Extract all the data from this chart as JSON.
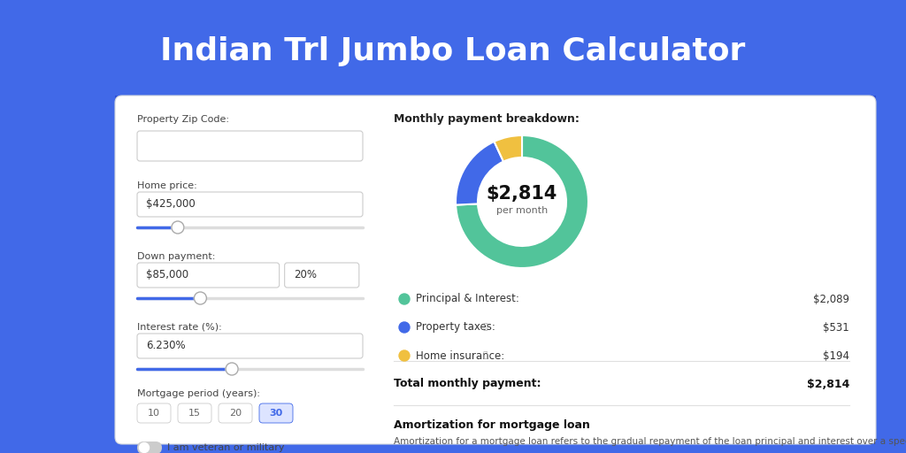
{
  "title": "Indian Trl Jumbo Loan Calculator",
  "title_bg_color": "#4169e8",
  "title_text_color": "#ffffff",
  "title_fontsize": 26,
  "panel_bg_color": "#ffffff",
  "card_border_color": "#d0d5dd",
  "left_panel": {
    "zip_label": "Property Zip Code:",
    "home_label": "Home price:",
    "home_value": "$425,000",
    "down_label": "Down payment:",
    "down_value": "$85,000",
    "down_pct": "20%",
    "rate_label": "Interest rate (%):",
    "rate_value": "6.230%",
    "period_label": "Mortgage period (years):",
    "period_options": [
      "10",
      "15",
      "20",
      "30"
    ],
    "period_selected": "30",
    "toggle_label": "I am veteran or military"
  },
  "right_panel": {
    "title": "Monthly payment breakdown:",
    "donut": {
      "total": "$2,814",
      "subtitle": "per month",
      "slices": [
        2089,
        531,
        194
      ],
      "colors": [
        "#52c49a",
        "#4169e8",
        "#f0c040"
      ]
    },
    "breakdown": [
      {
        "label": "Principal & Interest:",
        "value": "$2,089",
        "color": "#52c49a",
        "bold": false,
        "info": false
      },
      {
        "label": "Property taxes:",
        "value": "$531",
        "color": "#4169e8",
        "bold": false,
        "info": true
      },
      {
        "label": "Home insurance:",
        "value": "$194",
        "color": "#f0c040",
        "bold": false,
        "info": true
      },
      {
        "label": "Total monthly payment:",
        "value": "$2,814",
        "color": null,
        "bold": true,
        "info": false
      }
    ],
    "amortization_title": "Amortization for mortgage loan",
    "amortization_text": "Amortization for a mortgage loan refers to the gradual repayment of the loan principal and interest over a specified"
  }
}
